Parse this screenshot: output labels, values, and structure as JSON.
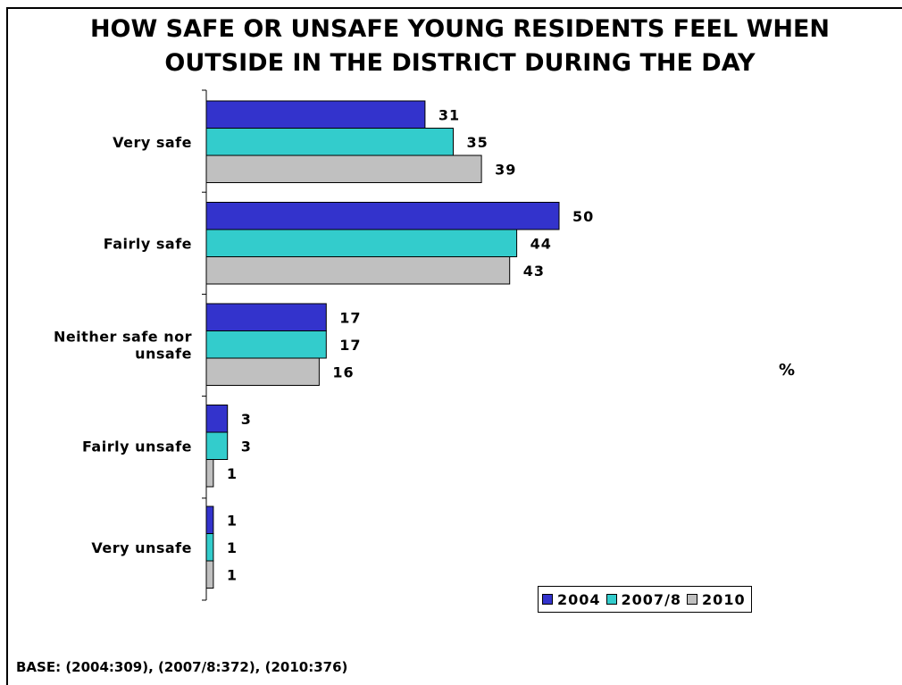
{
  "title": "HOW SAFE OR UNSAFE YOUNG RESIDENTS FEEL WHEN OUTSIDE IN THE DISTRICT DURING THE DAY",
  "unit_label": "%",
  "base_note": "BASE: (2004:309), (2007/8:372), (2010:376)",
  "colors": {
    "2004": "#3333cc",
    "2007/8": "#33cccc",
    "2010": "#c0c0c0"
  },
  "chart_data": {
    "type": "bar",
    "orientation": "horizontal",
    "title": "HOW SAFE OR UNSAFE YOUNG RESIDENTS FEEL WHEN OUTSIDE IN THE DISTRICT DURING THE DAY",
    "categories": [
      "Very safe",
      "Fairly safe",
      "Neither safe nor unsafe",
      "Fairly unsafe",
      "Very unsafe"
    ],
    "series": [
      {
        "name": "2004",
        "values": [
          31,
          50,
          17,
          3,
          1
        ]
      },
      {
        "name": "2007/8",
        "values": [
          35,
          44,
          17,
          3,
          1
        ]
      },
      {
        "name": "2010",
        "values": [
          39,
          43,
          16,
          1,
          1
        ]
      }
    ],
    "xlim": [
      0,
      50
    ],
    "grid": false,
    "legend_position": "bottom-right",
    "data_labels": true
  }
}
